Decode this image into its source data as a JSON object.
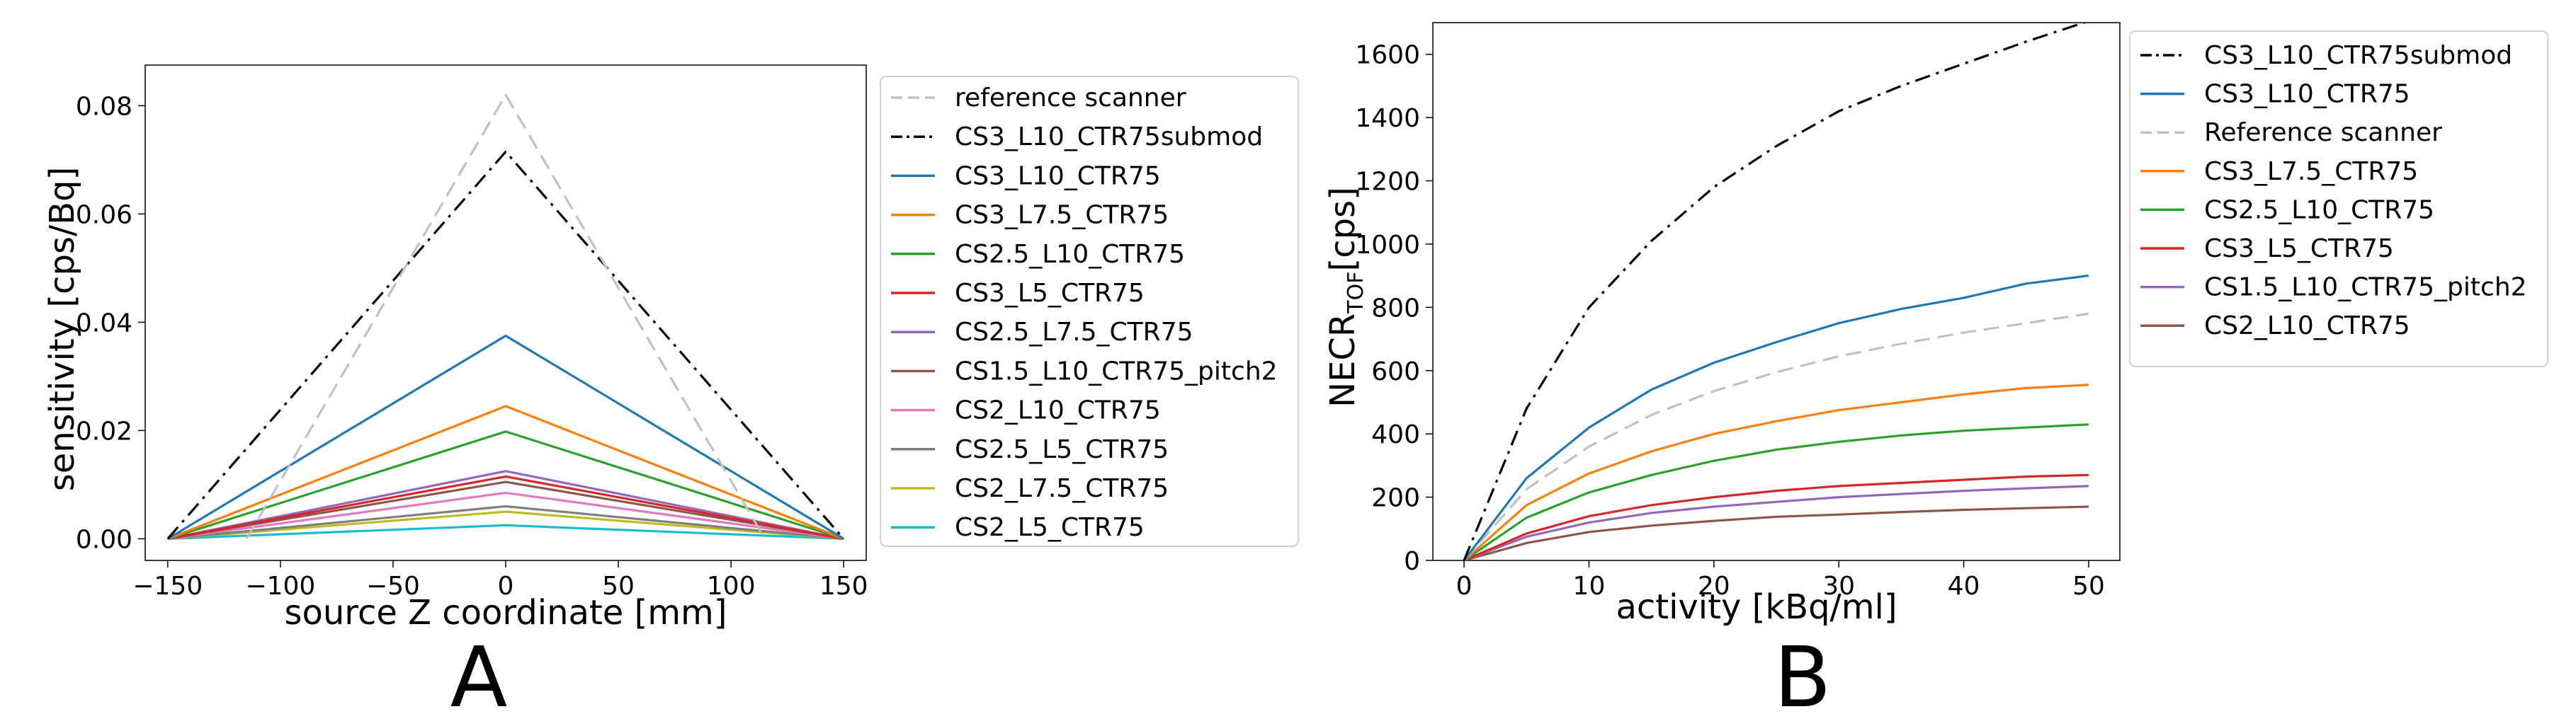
{
  "chart_data": [
    {
      "panel_label": "A",
      "type": "line",
      "xlabel": "source Z coordinate [mm]",
      "ylabel": "sensitivity [cps/Bq]",
      "xlim": [
        -160,
        160
      ],
      "ylim": [
        -0.004,
        0.0875
      ],
      "x_ticks": [
        -150,
        -100,
        -50,
        0,
        50,
        100,
        150
      ],
      "x_tick_labels": [
        "−150",
        "−100",
        "−50",
        "0",
        "50",
        "100",
        "150"
      ],
      "y_ticks": [
        0.0,
        0.02,
        0.04,
        0.06,
        0.08
      ],
      "y_tick_labels": [
        "0.00",
        "0.02",
        "0.04",
        "0.06",
        "0.08"
      ],
      "grid": false,
      "legend_position": "outside-right",
      "series": [
        {
          "name": "reference scanner",
          "style": "dashed",
          "color": "#c0c0c0",
          "x": [
            -115,
            0,
            115
          ],
          "y": [
            0.0,
            0.082,
            0.0
          ]
        },
        {
          "name": "CS3_L10_CTR75submod",
          "style": "dashdot",
          "color": "#000000",
          "x": [
            -150,
            0,
            150
          ],
          "y": [
            0.0,
            0.0715,
            0.0
          ]
        },
        {
          "name": "CS3_L10_CTR75",
          "style": "solid",
          "color": "#1f77b4",
          "x": [
            -150,
            0,
            150
          ],
          "y": [
            0.0,
            0.0375,
            0.0
          ]
        },
        {
          "name": "CS3_L7.5_CTR75",
          "style": "solid",
          "color": "#ff7f0e",
          "x": [
            -150,
            0,
            150
          ],
          "y": [
            0.0,
            0.0245,
            0.0
          ]
        },
        {
          "name": "CS2.5_L10_CTR75",
          "style": "solid",
          "color": "#2ca02c",
          "x": [
            -150,
            0,
            150
          ],
          "y": [
            0.0,
            0.0198,
            0.0
          ]
        },
        {
          "name": "CS3_L5_CTR75",
          "style": "solid",
          "color": "#d62728",
          "x": [
            -150,
            0,
            150
          ],
          "y": [
            0.0,
            0.0115,
            0.0
          ]
        },
        {
          "name": "CS2.5_L7.5_CTR75",
          "style": "solid",
          "color": "#9467bd",
          "x": [
            -150,
            0,
            150
          ],
          "y": [
            0.0,
            0.0125,
            0.0
          ]
        },
        {
          "name": "CS1.5_L10_CTR75_pitch2",
          "style": "solid",
          "color": "#8c564b",
          "x": [
            -150,
            0,
            150
          ],
          "y": [
            0.0,
            0.0105,
            0.0
          ]
        },
        {
          "name": "CS2_L10_CTR75",
          "style": "solid",
          "color": "#e377c2",
          "x": [
            -150,
            0,
            150
          ],
          "y": [
            0.0,
            0.0085,
            0.0
          ]
        },
        {
          "name": "CS2.5_L5_CTR75",
          "style": "solid",
          "color": "#7f7f7f",
          "x": [
            -150,
            0,
            150
          ],
          "y": [
            0.0,
            0.006,
            0.0
          ]
        },
        {
          "name": "CS2_L7.5_CTR75",
          "style": "solid",
          "color": "#bcbd22",
          "x": [
            -150,
            0,
            150
          ],
          "y": [
            0.0,
            0.005,
            0.0
          ]
        },
        {
          "name": "CS2_L5_CTR75",
          "style": "solid",
          "color": "#17becf",
          "x": [
            -150,
            0,
            150
          ],
          "y": [
            0.0,
            0.0025,
            0.0
          ]
        }
      ]
    },
    {
      "panel_label": "B",
      "type": "line",
      "xlabel": "activity [kBq/ml]",
      "ylabel": "NECR",
      "ylabel_subscript": "TOF",
      "ylabel_suffix": "[cps]",
      "xlim": [
        -2.5,
        52.5
      ],
      "ylim": [
        0,
        1700
      ],
      "x_ticks": [
        0,
        10,
        20,
        30,
        40,
        50
      ],
      "x_tick_labels": [
        "0",
        "10",
        "20",
        "30",
        "40",
        "50"
      ],
      "y_ticks": [
        0,
        200,
        400,
        600,
        800,
        1000,
        1200,
        1400,
        1600
      ],
      "y_tick_labels": [
        "0",
        "200",
        "400",
        "600",
        "800",
        "1000",
        "1200",
        "1400",
        "1600"
      ],
      "grid": false,
      "legend_position": "outside-right",
      "x": [
        0,
        5,
        10,
        15,
        20,
        25,
        30,
        35,
        40,
        45,
        50
      ],
      "series": [
        {
          "name": "CS3_L10_CTR75submod",
          "style": "dashdot",
          "color": "#000000",
          "values": [
            0,
            480,
            800,
            1010,
            1180,
            1310,
            1420,
            1500,
            1570,
            1640,
            1705
          ]
        },
        {
          "name": "CS3_L10_CTR75",
          "style": "solid",
          "color": "#1f77b4",
          "values": [
            0,
            260,
            420,
            540,
            625,
            690,
            750,
            795,
            830,
            875,
            900
          ]
        },
        {
          "name": "Reference scanner",
          "style": "dashed",
          "color": "#c0c0c0",
          "values": [
            0,
            225,
            360,
            460,
            535,
            595,
            645,
            685,
            720,
            750,
            780
          ]
        },
        {
          "name": "CS3_L7.5_CTR75",
          "style": "solid",
          "color": "#ff7f0e",
          "values": [
            0,
            175,
            275,
            345,
            400,
            440,
            475,
            500,
            525,
            545,
            555
          ]
        },
        {
          "name": "CS2.5_L10_CTR75",
          "style": "solid",
          "color": "#2ca02c",
          "values": [
            0,
            135,
            215,
            270,
            315,
            350,
            375,
            395,
            410,
            420,
            430
          ]
        },
        {
          "name": "CS3_L5_CTR75",
          "style": "solid",
          "color": "#d62728",
          "values": [
            0,
            85,
            140,
            175,
            200,
            220,
            235,
            245,
            255,
            265,
            270
          ]
        },
        {
          "name": "CS1.5_L10_CTR75_pitch2",
          "style": "solid",
          "color": "#9467bd",
          "values": [
            0,
            75,
            120,
            150,
            170,
            185,
            200,
            210,
            220,
            228,
            235
          ]
        },
        {
          "name": "CS2_L10_CTR75",
          "style": "solid",
          "color": "#8c564b",
          "values": [
            0,
            55,
            90,
            110,
            125,
            138,
            145,
            153,
            160,
            165,
            170
          ]
        }
      ]
    }
  ]
}
